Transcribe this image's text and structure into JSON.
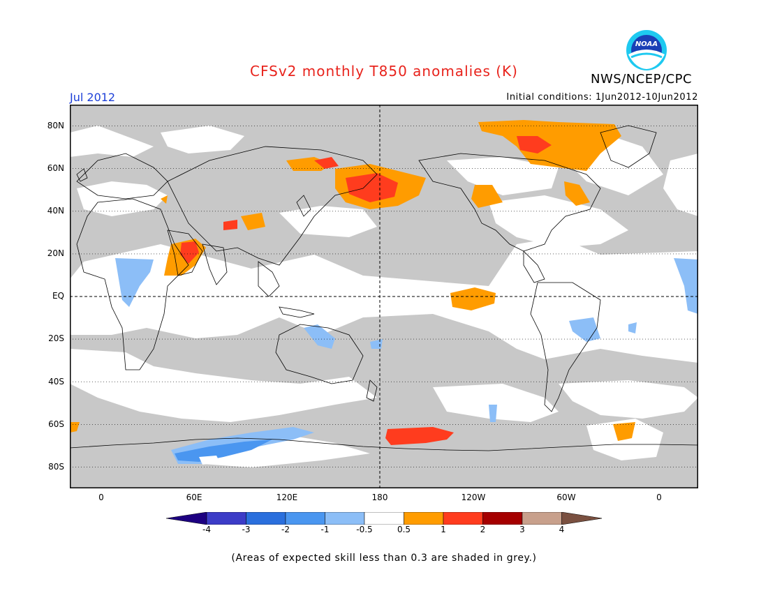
{
  "header": {
    "title": "CFSv2 monthly T850 anomalies (K)",
    "agency": "NWS/NCEP/CPC",
    "logo_text": "NOAA",
    "period": "Jul 2012",
    "initial_conditions": "Initial conditions: 1Jun2012-10Jun2012"
  },
  "map": {
    "projection": "equirectangular, centered on 180",
    "lon_range": [
      -20,
      340
    ],
    "lat_range": [
      -90,
      90
    ],
    "lat_labels": [
      "80N",
      "60N",
      "40N",
      "20N",
      "EQ",
      "20S",
      "40S",
      "60S",
      "80S"
    ],
    "lat_values": [
      80,
      60,
      40,
      20,
      0,
      -20,
      -40,
      -60,
      -80
    ],
    "lon_labels": [
      "0",
      "60E",
      "120E",
      "180",
      "120W",
      "60W",
      "0"
    ],
    "lon_values": [
      0,
      60,
      120,
      180,
      240,
      300,
      360
    ],
    "grey_meaning": "skill < 0.3",
    "anomaly_regions": [
      {
        "region": "N Pacific / Kamchatka",
        "level": "1 to 2"
      },
      {
        "region": "Hudson Bay / Canadian Arctic",
        "level": "1 to 2"
      },
      {
        "region": "Arabian Sea",
        "level": "1 to 2"
      },
      {
        "region": "Central Tibet",
        "level": "1 to 2"
      },
      {
        "region": "Southern Ocean near 160W",
        "level": "1 to 2"
      },
      {
        "region": "Equatorial Central Pacific",
        "level": "0.5 to 1"
      },
      {
        "region": "Antarctic coast 60E-140E",
        "level": "-1 to -2"
      },
      {
        "region": "Australia",
        "level": "-0.5 to -1"
      }
    ]
  },
  "colorbar": {
    "labels": [
      "-4",
      "-3",
      "-2",
      "-1",
      "-0.5",
      "0.5",
      "1",
      "2",
      "3",
      "4"
    ],
    "colors": [
      "#1d0081",
      "#3c3cc7",
      "#2a6fdd",
      "#4a96f0",
      "#8cbef7",
      "#ffffff",
      "#ff9c00",
      "#ff3c1e",
      "#a50000",
      "#c8a08c",
      "#7a5040"
    ]
  },
  "footnote": "(Areas of expected skill less than 0.3 are shaded in grey.)",
  "colors": {
    "title": "#e8231c",
    "period": "#1c3fd8",
    "grey_shade": "#c8c8c8",
    "positive_1": "#ff9c00",
    "positive_2": "#ff3c1e",
    "negative_1": "#8cbef7",
    "negative_2": "#4a96f0"
  }
}
